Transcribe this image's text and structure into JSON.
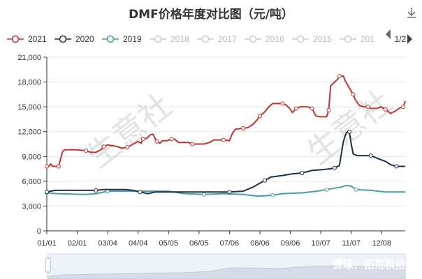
{
  "chart_data": {
    "type": "line",
    "title": "DMF价格年度对比图（元/吨）",
    "ylim": [
      0,
      21000
    ],
    "yticks": [
      "0",
      "3,000",
      "6,000",
      "9,000",
      "12,000",
      "15,000",
      "18,000",
      "21,000"
    ],
    "x_range_days": [
      0,
      365
    ],
    "xticks": [
      {
        "label": "01/01",
        "day": 0
      },
      {
        "label": "02/01",
        "day": 31
      },
      {
        "label": "03/04",
        "day": 62
      },
      {
        "label": "04/04",
        "day": 93
      },
      {
        "label": "05/05",
        "day": 124
      },
      {
        "label": "06/05",
        "day": 155
      },
      {
        "label": "07/06",
        "day": 186
      },
      {
        "label": "08/06",
        "day": 217
      },
      {
        "label": "09/06",
        "day": 248
      },
      {
        "label": "10/07",
        "day": 279
      },
      {
        "label": "11/07",
        "day": 310
      },
      {
        "label": "12/08",
        "day": 341
      }
    ],
    "legend": {
      "placement": "top-left",
      "entries": [
        {
          "name": "2021",
          "color": "#c23531",
          "active": true
        },
        {
          "name": "2020",
          "color": "#1f3044",
          "active": true
        },
        {
          "name": "2019",
          "color": "#4a9d9e",
          "active": true
        },
        {
          "name": "2018",
          "active": false
        },
        {
          "name": "2017",
          "active": false
        },
        {
          "name": "2016",
          "active": false
        },
        {
          "name": "2015",
          "active": false
        },
        {
          "name": "201",
          "active": false
        }
      ],
      "page": "1/2"
    },
    "series": [
      {
        "name": "2021",
        "color": "#c23531",
        "points": [
          [
            0,
            7800
          ],
          [
            2,
            7800
          ],
          [
            4,
            8100
          ],
          [
            6,
            7800
          ],
          [
            12,
            7800
          ],
          [
            16,
            9600
          ],
          [
            18,
            9800
          ],
          [
            30,
            9800
          ],
          [
            40,
            9700
          ],
          [
            45,
            9500
          ],
          [
            50,
            9500
          ],
          [
            55,
            9800
          ],
          [
            58,
            10200
          ],
          [
            62,
            10400
          ],
          [
            72,
            10200
          ],
          [
            76,
            10000
          ],
          [
            82,
            10100
          ],
          [
            88,
            10500
          ],
          [
            93,
            10800
          ],
          [
            96,
            10600
          ],
          [
            98,
            11100
          ],
          [
            102,
            11200
          ],
          [
            105,
            11600
          ],
          [
            108,
            11700
          ],
          [
            112,
            10800
          ],
          [
            115,
            10600
          ],
          [
            118,
            10900
          ],
          [
            122,
            10900
          ],
          [
            127,
            11100
          ],
          [
            130,
            11100
          ],
          [
            134,
            10700
          ],
          [
            144,
            10700
          ],
          [
            148,
            10500
          ],
          [
            160,
            10500
          ],
          [
            166,
            10700
          ],
          [
            170,
            11000
          ],
          [
            180,
            11000
          ],
          [
            186,
            10900
          ],
          [
            189,
            11800
          ],
          [
            192,
            12300
          ],
          [
            200,
            12400
          ],
          [
            205,
            12500
          ],
          [
            210,
            12900
          ],
          [
            214,
            13400
          ],
          [
            217,
            13900
          ],
          [
            222,
            14400
          ],
          [
            226,
            15000
          ],
          [
            230,
            15400
          ],
          [
            240,
            15400
          ],
          [
            244,
            15200
          ],
          [
            248,
            14700
          ],
          [
            250,
            14300
          ],
          [
            254,
            14800
          ],
          [
            258,
            15000
          ],
          [
            262,
            15000
          ],
          [
            266,
            15000
          ],
          [
            270,
            14800
          ],
          [
            274,
            13900
          ],
          [
            278,
            13800
          ],
          [
            285,
            13800
          ],
          [
            287,
            14600
          ],
          [
            289,
            17500
          ],
          [
            292,
            17900
          ],
          [
            296,
            18300
          ],
          [
            298,
            18700
          ],
          [
            302,
            18700
          ],
          [
            304,
            18100
          ],
          [
            308,
            17300
          ],
          [
            312,
            16500
          ],
          [
            314,
            15900
          ],
          [
            318,
            15200
          ],
          [
            322,
            15000
          ],
          [
            327,
            15000
          ],
          [
            330,
            14800
          ],
          [
            336,
            14800
          ],
          [
            340,
            15000
          ],
          [
            345,
            14700
          ],
          [
            350,
            14200
          ],
          [
            355,
            14500
          ],
          [
            360,
            14900
          ],
          [
            363,
            15000
          ],
          [
            365,
            15700
          ]
        ]
      },
      {
        "name": "2020",
        "color": "#1f3044",
        "points": [
          [
            0,
            4700
          ],
          [
            8,
            4900
          ],
          [
            40,
            4900
          ],
          [
            45,
            4900
          ],
          [
            50,
            4900
          ],
          [
            58,
            5000
          ],
          [
            80,
            5000
          ],
          [
            88,
            4900
          ],
          [
            95,
            4700
          ],
          [
            103,
            4500
          ],
          [
            110,
            4700
          ],
          [
            160,
            4700
          ],
          [
            186,
            4700
          ],
          [
            200,
            4800
          ],
          [
            210,
            5300
          ],
          [
            216,
            5700
          ],
          [
            222,
            6100
          ],
          [
            228,
            6500
          ],
          [
            240,
            6700
          ],
          [
            250,
            6900
          ],
          [
            260,
            7000
          ],
          [
            270,
            7300
          ],
          [
            280,
            7400
          ],
          [
            288,
            7500
          ],
          [
            293,
            7600
          ],
          [
            298,
            7900
          ],
          [
            302,
            10800
          ],
          [
            305,
            11900
          ],
          [
            308,
            12000
          ],
          [
            310,
            10500
          ],
          [
            312,
            9300
          ],
          [
            316,
            9100
          ],
          [
            330,
            9100
          ],
          [
            338,
            8700
          ],
          [
            345,
            8400
          ],
          [
            350,
            8000
          ],
          [
            356,
            7800
          ],
          [
            365,
            7800
          ]
        ]
      },
      {
        "name": "2019",
        "color": "#4a9d9e",
        "points": [
          [
            0,
            4600
          ],
          [
            10,
            4500
          ],
          [
            40,
            4400
          ],
          [
            50,
            4500
          ],
          [
            62,
            4800
          ],
          [
            90,
            4800
          ],
          [
            124,
            4800
          ],
          [
            140,
            4500
          ],
          [
            160,
            4400
          ],
          [
            180,
            4500
          ],
          [
            200,
            4400
          ],
          [
            215,
            4200
          ],
          [
            230,
            4300
          ],
          [
            240,
            4500
          ],
          [
            260,
            4600
          ],
          [
            275,
            4800
          ],
          [
            285,
            5000
          ],
          [
            300,
            5300
          ],
          [
            305,
            5500
          ],
          [
            310,
            5400
          ],
          [
            315,
            5000
          ],
          [
            330,
            4900
          ],
          [
            345,
            4700
          ],
          [
            365,
            4700
          ]
        ]
      }
    ],
    "watermarks": [
      "生意社",
      "生意社",
      "生意社",
      "生意社"
    ],
    "footer_watermark": "雪球：拓荒秋拾"
  }
}
